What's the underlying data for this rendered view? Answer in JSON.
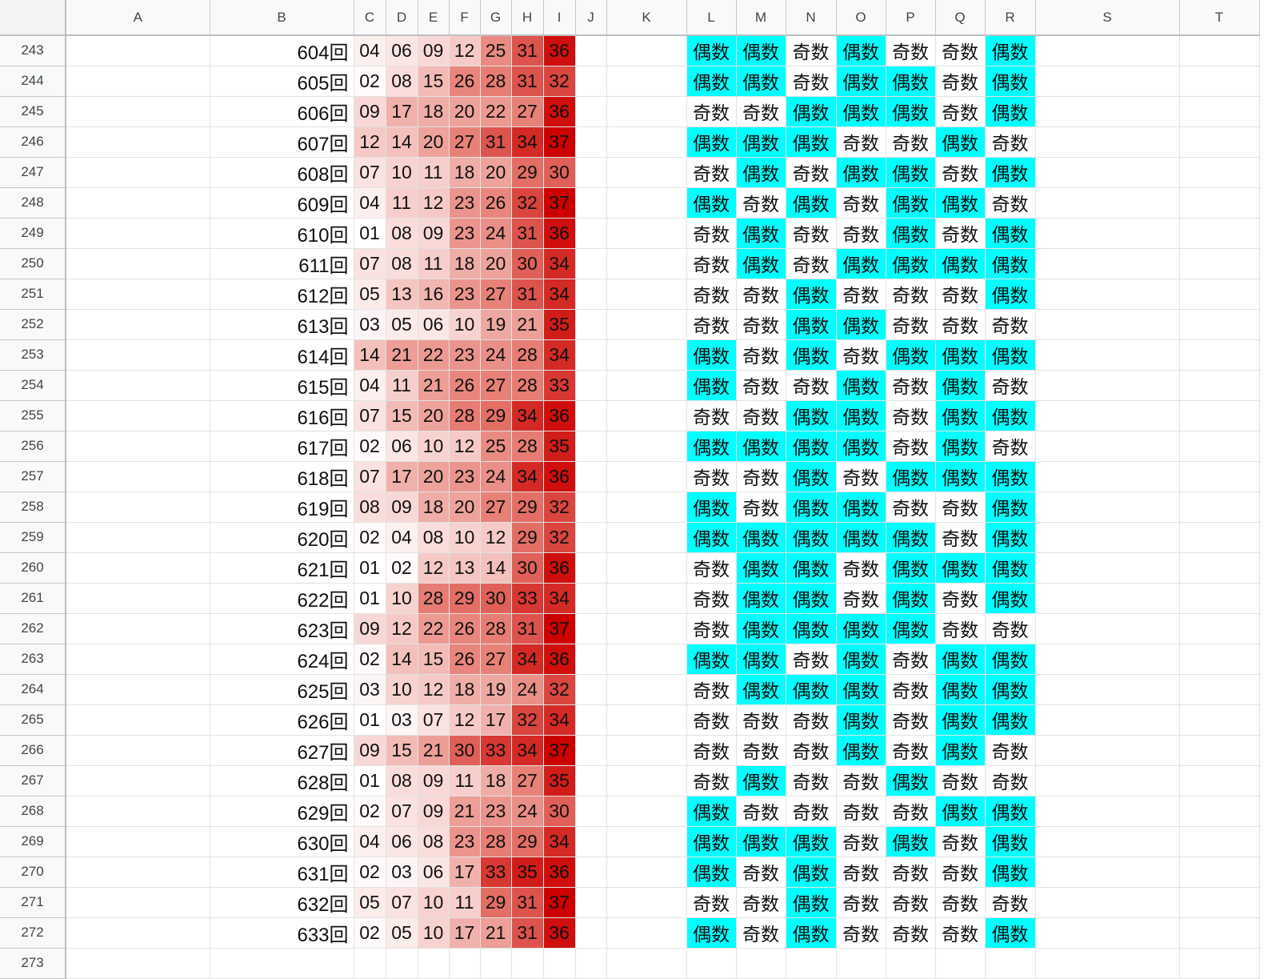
{
  "columns": [
    "",
    "A",
    "B",
    "C",
    "D",
    "E",
    "F",
    "G",
    "H",
    "I",
    "J",
    "K",
    "L",
    "M",
    "N",
    "O",
    "P",
    "Q",
    "R",
    "S",
    "T"
  ],
  "parity_labels": {
    "even": "偶数",
    "odd": "奇数"
  },
  "heatmap_palette": {
    "min": "#ffffff",
    "mid": "#e67c73",
    "max": "#cc0000"
  },
  "parity_color": "#00ffff",
  "rows": [
    {
      "row": "243",
      "round": "604回",
      "nums": [
        "04",
        "06",
        "09",
        "12",
        "25",
        "31",
        "36"
      ],
      "parity": [
        "偶数",
        "偶数",
        "奇数",
        "偶数",
        "奇数",
        "奇数",
        "偶数"
      ]
    },
    {
      "row": "244",
      "round": "605回",
      "nums": [
        "02",
        "08",
        "15",
        "26",
        "28",
        "31",
        "32"
      ],
      "parity": [
        "偶数",
        "偶数",
        "奇数",
        "偶数",
        "偶数",
        "奇数",
        "偶数"
      ]
    },
    {
      "row": "245",
      "round": "606回",
      "nums": [
        "09",
        "17",
        "18",
        "20",
        "22",
        "27",
        "36"
      ],
      "parity": [
        "奇数",
        "奇数",
        "偶数",
        "偶数",
        "偶数",
        "奇数",
        "偶数"
      ]
    },
    {
      "row": "246",
      "round": "607回",
      "nums": [
        "12",
        "14",
        "20",
        "27",
        "31",
        "34",
        "37"
      ],
      "parity": [
        "偶数",
        "偶数",
        "偶数",
        "奇数",
        "奇数",
        "偶数",
        "奇数"
      ]
    },
    {
      "row": "247",
      "round": "608回",
      "nums": [
        "07",
        "10",
        "11",
        "18",
        "20",
        "29",
        "30"
      ],
      "parity": [
        "奇数",
        "偶数",
        "奇数",
        "偶数",
        "偶数",
        "奇数",
        "偶数"
      ]
    },
    {
      "row": "248",
      "round": "609回",
      "nums": [
        "04",
        "11",
        "12",
        "23",
        "26",
        "32",
        "37"
      ],
      "parity": [
        "偶数",
        "奇数",
        "偶数",
        "奇数",
        "偶数",
        "偶数",
        "奇数"
      ]
    },
    {
      "row": "249",
      "round": "610回",
      "nums": [
        "01",
        "08",
        "09",
        "23",
        "24",
        "31",
        "36"
      ],
      "parity": [
        "奇数",
        "偶数",
        "奇数",
        "奇数",
        "偶数",
        "奇数",
        "偶数"
      ]
    },
    {
      "row": "250",
      "round": "611回",
      "nums": [
        "07",
        "08",
        "11",
        "18",
        "20",
        "30",
        "34"
      ],
      "parity": [
        "奇数",
        "偶数",
        "奇数",
        "偶数",
        "偶数",
        "偶数",
        "偶数"
      ]
    },
    {
      "row": "251",
      "round": "612回",
      "nums": [
        "05",
        "13",
        "16",
        "23",
        "27",
        "31",
        "34"
      ],
      "parity": [
        "奇数",
        "奇数",
        "偶数",
        "奇数",
        "奇数",
        "奇数",
        "偶数"
      ]
    },
    {
      "row": "252",
      "round": "613回",
      "nums": [
        "03",
        "05",
        "06",
        "10",
        "19",
        "21",
        "35"
      ],
      "parity": [
        "奇数",
        "奇数",
        "偶数",
        "偶数",
        "奇数",
        "奇数",
        "奇数"
      ]
    },
    {
      "row": "253",
      "round": "614回",
      "nums": [
        "14",
        "21",
        "22",
        "23",
        "24",
        "28",
        "34"
      ],
      "parity": [
        "偶数",
        "奇数",
        "偶数",
        "奇数",
        "偶数",
        "偶数",
        "偶数"
      ]
    },
    {
      "row": "254",
      "round": "615回",
      "nums": [
        "04",
        "11",
        "21",
        "26",
        "27",
        "28",
        "33"
      ],
      "parity": [
        "偶数",
        "奇数",
        "奇数",
        "偶数",
        "奇数",
        "偶数",
        "奇数"
      ]
    },
    {
      "row": "255",
      "round": "616回",
      "nums": [
        "07",
        "15",
        "20",
        "28",
        "29",
        "34",
        "36"
      ],
      "parity": [
        "奇数",
        "奇数",
        "偶数",
        "偶数",
        "奇数",
        "偶数",
        "偶数"
      ]
    },
    {
      "row": "256",
      "round": "617回",
      "nums": [
        "02",
        "06",
        "10",
        "12",
        "25",
        "28",
        "35"
      ],
      "parity": [
        "偶数",
        "偶数",
        "偶数",
        "偶数",
        "奇数",
        "偶数",
        "奇数"
      ]
    },
    {
      "row": "257",
      "round": "618回",
      "nums": [
        "07",
        "17",
        "20",
        "23",
        "24",
        "34",
        "36"
      ],
      "parity": [
        "奇数",
        "奇数",
        "偶数",
        "奇数",
        "偶数",
        "偶数",
        "偶数"
      ]
    },
    {
      "row": "258",
      "round": "619回",
      "nums": [
        "08",
        "09",
        "18",
        "20",
        "27",
        "29",
        "32"
      ],
      "parity": [
        "偶数",
        "奇数",
        "偶数",
        "偶数",
        "奇数",
        "奇数",
        "偶数"
      ]
    },
    {
      "row": "259",
      "round": "620回",
      "nums": [
        "02",
        "04",
        "08",
        "10",
        "12",
        "29",
        "32"
      ],
      "parity": [
        "偶数",
        "偶数",
        "偶数",
        "偶数",
        "偶数",
        "奇数",
        "偶数"
      ]
    },
    {
      "row": "260",
      "round": "621回",
      "nums": [
        "01",
        "02",
        "12",
        "13",
        "14",
        "30",
        "36"
      ],
      "parity": [
        "奇数",
        "偶数",
        "偶数",
        "奇数",
        "偶数",
        "偶数",
        "偶数"
      ]
    },
    {
      "row": "261",
      "round": "622回",
      "nums": [
        "01",
        "10",
        "28",
        "29",
        "30",
        "33",
        "34"
      ],
      "parity": [
        "奇数",
        "偶数",
        "偶数",
        "奇数",
        "偶数",
        "奇数",
        "偶数"
      ]
    },
    {
      "row": "262",
      "round": "623回",
      "nums": [
        "09",
        "12",
        "22",
        "26",
        "28",
        "31",
        "37"
      ],
      "parity": [
        "奇数",
        "偶数",
        "偶数",
        "偶数",
        "偶数",
        "奇数",
        "奇数"
      ]
    },
    {
      "row": "263",
      "round": "624回",
      "nums": [
        "02",
        "14",
        "15",
        "26",
        "27",
        "34",
        "36"
      ],
      "parity": [
        "偶数",
        "偶数",
        "奇数",
        "偶数",
        "奇数",
        "偶数",
        "偶数"
      ]
    },
    {
      "row": "264",
      "round": "625回",
      "nums": [
        "03",
        "10",
        "12",
        "18",
        "19",
        "24",
        "32"
      ],
      "parity": [
        "奇数",
        "偶数",
        "偶数",
        "偶数",
        "奇数",
        "偶数",
        "偶数"
      ]
    },
    {
      "row": "265",
      "round": "626回",
      "nums": [
        "01",
        "03",
        "07",
        "12",
        "17",
        "32",
        "34"
      ],
      "parity": [
        "奇数",
        "奇数",
        "奇数",
        "偶数",
        "奇数",
        "偶数",
        "偶数"
      ]
    },
    {
      "row": "266",
      "round": "627回",
      "nums": [
        "09",
        "15",
        "21",
        "30",
        "33",
        "34",
        "37"
      ],
      "parity": [
        "奇数",
        "奇数",
        "奇数",
        "偶数",
        "奇数",
        "偶数",
        "奇数"
      ]
    },
    {
      "row": "267",
      "round": "628回",
      "nums": [
        "01",
        "08",
        "09",
        "11",
        "18",
        "27",
        "35"
      ],
      "parity": [
        "奇数",
        "偶数",
        "奇数",
        "奇数",
        "偶数",
        "奇数",
        "奇数"
      ]
    },
    {
      "row": "268",
      "round": "629回",
      "nums": [
        "02",
        "07",
        "09",
        "21",
        "23",
        "24",
        "30"
      ],
      "parity": [
        "偶数",
        "奇数",
        "奇数",
        "奇数",
        "奇数",
        "偶数",
        "偶数"
      ]
    },
    {
      "row": "269",
      "round": "630回",
      "nums": [
        "04",
        "06",
        "08",
        "23",
        "28",
        "29",
        "34"
      ],
      "parity": [
        "偶数",
        "偶数",
        "偶数",
        "奇数",
        "偶数",
        "奇数",
        "偶数"
      ]
    },
    {
      "row": "270",
      "round": "631回",
      "nums": [
        "02",
        "03",
        "06",
        "17",
        "33",
        "35",
        "36"
      ],
      "parity": [
        "偶数",
        "奇数",
        "偶数",
        "奇数",
        "奇数",
        "奇数",
        "偶数"
      ]
    },
    {
      "row": "271",
      "round": "632回",
      "nums": [
        "05",
        "07",
        "10",
        "11",
        "29",
        "31",
        "37"
      ],
      "parity": [
        "奇数",
        "奇数",
        "偶数",
        "奇数",
        "奇数",
        "奇数",
        "奇数"
      ]
    },
    {
      "row": "272",
      "round": "633回",
      "nums": [
        "02",
        "05",
        "10",
        "17",
        "21",
        "31",
        "36"
      ],
      "parity": [
        "偶数",
        "奇数",
        "偶数",
        "奇数",
        "奇数",
        "奇数",
        "偶数"
      ]
    },
    {
      "row": "273",
      "round": "",
      "nums": [
        "",
        "",
        "",
        "",
        "",
        "",
        ""
      ],
      "parity": [
        "",
        "",
        "",
        "",
        "",
        "",
        ""
      ]
    }
  ]
}
